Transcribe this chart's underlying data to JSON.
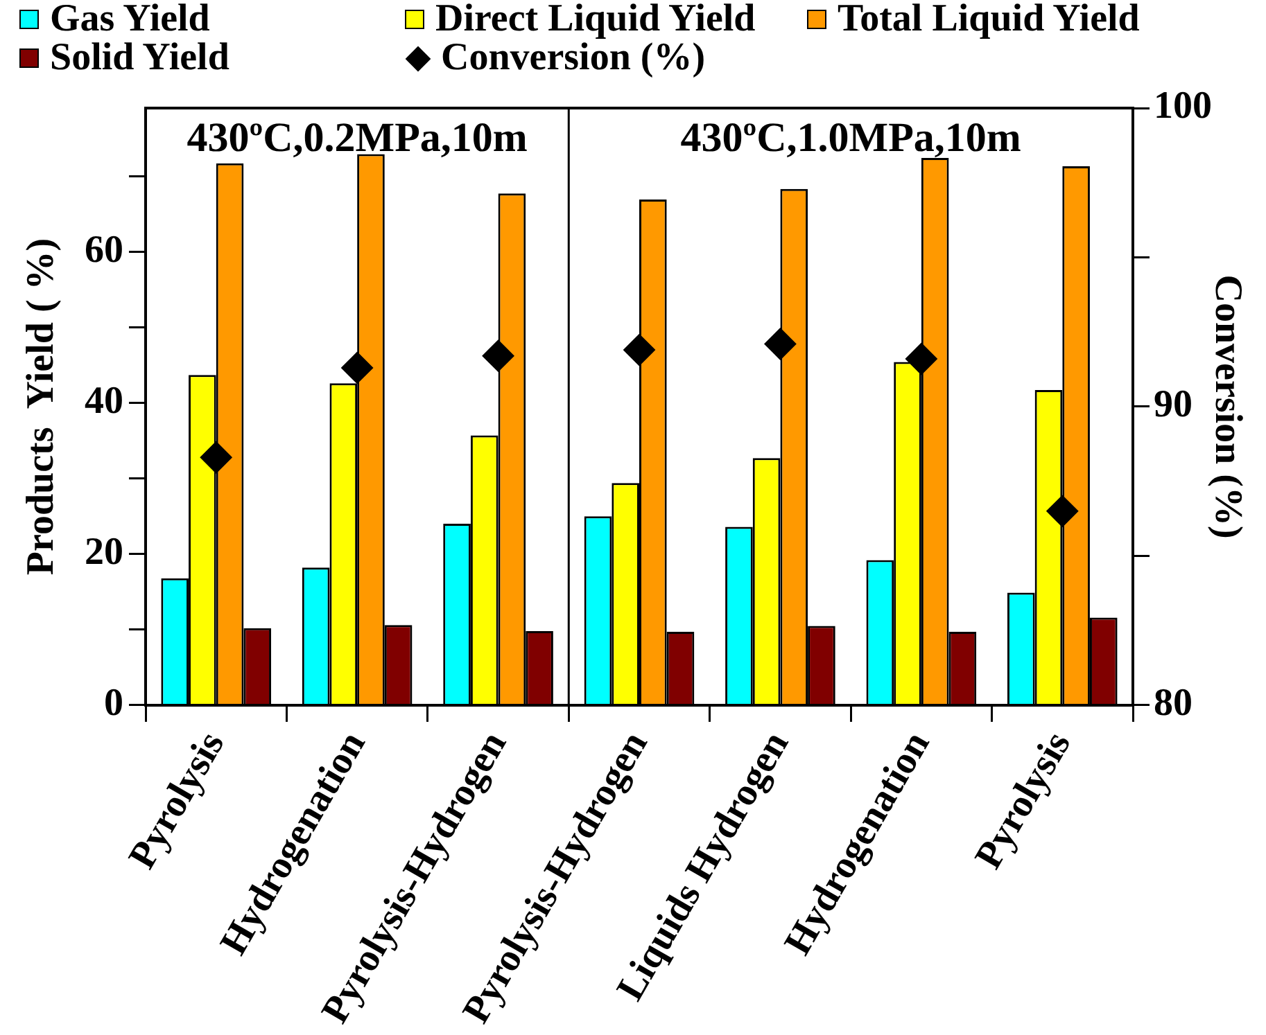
{
  "chart_data": {
    "type": "bar",
    "categories": [
      "Pyrolysis",
      "Hydrogenation",
      "Pyrolysis-Hydrogen",
      "Pyrolysis-Hydrogen",
      "Liquids Hydrogen",
      "Hydrogenation",
      "Pyrolysis"
    ],
    "ylabel": "Products  Yield ( %)",
    "y2label": "Conversion (%)",
    "ylim": [
      0,
      79
    ],
    "yticks": [
      0,
      {
        "value": 10,
        "label": null
      },
      20,
      {
        "value": 30,
        "label": null
      },
      40,
      {
        "value": 50,
        "label": null
      },
      60,
      {
        "value": 70,
        "label": null
      }
    ],
    "y2lim": [
      80,
      100
    ],
    "y2ticks": [
      80,
      {
        "value": 85,
        "label": null
      },
      90,
      {
        "value": 95,
        "label": null
      },
      100
    ],
    "series": [
      {
        "name": "Gas Yield",
        "color": "#00ffff",
        "values": [
          16.8,
          18.2,
          24.0,
          25.0,
          23.6,
          19.2,
          14.9
        ]
      },
      {
        "name": "Direct Liquid Yield",
        "color": "#ffff00",
        "values": [
          43.7,
          42.6,
          35.7,
          29.4,
          32.7,
          45.4,
          41.7
        ]
      },
      {
        "name": "Total Liquid Yield",
        "color": "#ff9900",
        "values": [
          71.7,
          72.9,
          67.7,
          66.9,
          68.3,
          72.4,
          71.3
        ]
      },
      {
        "name": "Solid Yield",
        "color": "#800000",
        "values": [
          10.2,
          10.6,
          9.8,
          9.7,
          10.5,
          9.7,
          11.6
        ]
      },
      {
        "name": "Conversion (%)",
        "type": "scatter",
        "axis": "y2",
        "marker": "diamond",
        "color": "#000000",
        "values": [
          88.3,
          91.3,
          91.7,
          91.9,
          92.1,
          91.6,
          86.5
        ]
      }
    ],
    "annotations": [
      "430ºC,0.2MPa,10m",
      "430ºC,1.0MPa,10m"
    ],
    "legend": "top",
    "grid": false
  }
}
